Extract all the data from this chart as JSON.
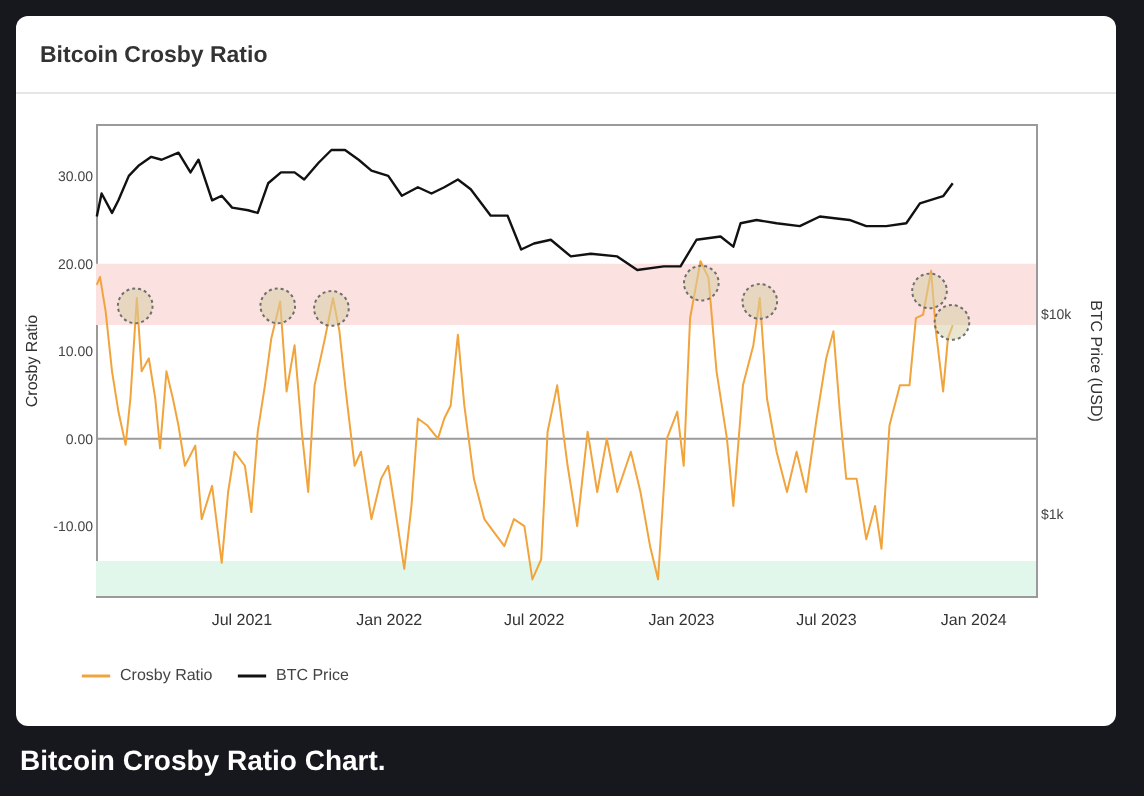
{
  "chart_data": {
    "type": "line",
    "title": "Bitcoin Crosby Ratio",
    "ylabel": "Crosby Ratio",
    "y2label": "BTC Price (USD)",
    "annotations": [
      "Bitcoin Crosby Ratio Chart."
    ],
    "xlim": [
      "2021-01-01",
      "2024-03-20"
    ],
    "xticks": [
      {
        "value": "2021-07-01",
        "label": "Jul 2021"
      },
      {
        "value": "2022-01-01",
        "label": "Jan 2022"
      },
      {
        "value": "2022-07-01",
        "label": "Jul 2022"
      },
      {
        "value": "2023-01-01",
        "label": "Jan 2023"
      },
      {
        "value": "2023-07-01",
        "label": "Jul 2023"
      },
      {
        "value": "2024-01-01",
        "label": "Jan 2024"
      }
    ],
    "ylim": [
      -18,
      36
    ],
    "yticks": [
      {
        "value": -10,
        "label": "-10.00"
      },
      {
        "value": 0,
        "label": "0.00"
      },
      {
        "value": 10,
        "label": "10.00"
      },
      {
        "value": 20,
        "label": "20.00"
      },
      {
        "value": 30,
        "label": "30.00"
      }
    ],
    "y2lim": [
      390,
      89000
    ],
    "y2ticks": [
      {
        "value": 1000,
        "label": "$1k"
      },
      {
        "value": 10000,
        "label": "$10k"
      }
    ],
    "log": "y2",
    "grid": false,
    "legend": "bottom left",
    "bands": [
      {
        "axis": "y",
        "from": 13,
        "to": 20,
        "color": "#fbe1df"
      },
      {
        "axis": "y",
        "from": -18,
        "to": -14,
        "color": "#e2f7ec"
      }
    ],
    "ref_lines": [
      {
        "axis": "y",
        "value": 0,
        "color": "#9a9a9a"
      }
    ],
    "series": [
      {
        "name": "Crosby Ratio",
        "type": "line",
        "color": "#f2a43c",
        "x": [
          "2021-01-02",
          "2021-01-06",
          "2021-01-13",
          "2021-01-21",
          "2021-01-29",
          "2021-02-07",
          "2021-02-13",
          "2021-02-21",
          "2021-02-27",
          "2021-03-08",
          "2021-03-16",
          "2021-03-22",
          "2021-03-30",
          "2021-04-07",
          "2021-04-14",
          "2021-04-22",
          "2021-05-05",
          "2021-05-13",
          "2021-05-26",
          "2021-06-07",
          "2021-06-15",
          "2021-06-23",
          "2021-07-06",
          "2021-07-14",
          "2021-07-22",
          "2021-07-31",
          "2021-08-08",
          "2021-08-19",
          "2021-08-27",
          "2021-09-06",
          "2021-09-15",
          "2021-09-23",
          "2021-10-01",
          "2021-10-14",
          "2021-10-24",
          "2021-11-01",
          "2021-11-09",
          "2021-11-20",
          "2021-11-28",
          "2021-12-11",
          "2021-12-23",
          "2022-01-01",
          "2022-01-09",
          "2022-01-21",
          "2022-01-30",
          "2022-02-07",
          "2022-02-19",
          "2022-03-04",
          "2022-03-12",
          "2022-03-20",
          "2022-03-29",
          "2022-04-06",
          "2022-04-18",
          "2022-05-01",
          "2022-05-13",
          "2022-05-26",
          "2022-06-07",
          "2022-06-20",
          "2022-06-30",
          "2022-07-11",
          "2022-07-19",
          "2022-07-31",
          "2022-08-13",
          "2022-08-25",
          "2022-09-07",
          "2022-09-19",
          "2022-10-01",
          "2022-10-14",
          "2022-10-31",
          "2022-11-12",
          "2022-11-24",
          "2022-12-04",
          "2022-12-15",
          "2022-12-28",
          "2023-01-05",
          "2023-01-13",
          "2023-01-26",
          "2023-02-05",
          "2023-02-15",
          "2023-02-28",
          "2023-03-08",
          "2023-03-20",
          "2023-04-02",
          "2023-04-10",
          "2023-04-19",
          "2023-05-01",
          "2023-05-14",
          "2023-05-26",
          "2023-06-07",
          "2023-06-20",
          "2023-07-02",
          "2023-07-11",
          "2023-07-19",
          "2023-07-27",
          "2023-08-09",
          "2023-08-21",
          "2023-09-01",
          "2023-09-09",
          "2023-09-19",
          "2023-10-02",
          "2023-10-14",
          "2023-10-22",
          "2023-10-31",
          "2023-11-10",
          "2023-11-16",
          "2023-11-25",
          "2023-12-01",
          "2023-12-07"
        ],
        "values": [
          17.6,
          18.5,
          14.6,
          7.7,
          3.1,
          -0.7,
          4.6,
          16.1,
          7.7,
          9.2,
          4.6,
          -1.1,
          7.7,
          4.6,
          1.5,
          -3.1,
          -0.8,
          -9.2,
          -5.4,
          -14.2,
          -6.1,
          -1.5,
          -3.1,
          -8.4,
          0.8,
          6.1,
          11.5,
          15.7,
          5.4,
          10.7,
          0.8,
          -6.1,
          6.1,
          11.5,
          16.1,
          12.3,
          5.4,
          -3.1,
          -1.5,
          -9.2,
          -4.6,
          -3.1,
          -7.7,
          -14.9,
          -7.7,
          2.3,
          1.5,
          0,
          2.3,
          3.8,
          11.9,
          3.8,
          -4.6,
          -9.2,
          -10.7,
          -12.3,
          -9.2,
          -10,
          -16.1,
          -13.8,
          0.8,
          6.1,
          -3.1,
          -10,
          0.8,
          -6.1,
          0,
          -6.1,
          -1.5,
          -6.1,
          -12.3,
          -16.1,
          0,
          3.1,
          -3.1,
          13.8,
          20.3,
          18.4,
          7.7,
          0,
          -7.7,
          6.1,
          10.7,
          16.1,
          4.6,
          -1.5,
          -6.1,
          -1.5,
          -6.1,
          2.3,
          9.2,
          12.3,
          3.1,
          -4.6,
          -4.6,
          -11.5,
          -7.7,
          -12.6,
          1.5,
          6.1,
          6.1,
          13.8,
          14.2,
          19.2,
          12.3,
          5.4,
          11.5,
          13.0
        ]
      },
      {
        "name": "BTC Price",
        "type": "line",
        "axis": "y2",
        "color": "#111111",
        "x": [
          "2021-01-02",
          "2021-01-08",
          "2021-01-21",
          "2021-01-29",
          "2021-02-11",
          "2021-02-23",
          "2021-03-11",
          "2021-03-24",
          "2021-04-14",
          "2021-04-29",
          "2021-05-09",
          "2021-05-26",
          "2021-06-07",
          "2021-06-20",
          "2021-07-10",
          "2021-07-22",
          "2021-08-04",
          "2021-08-20",
          "2021-09-06",
          "2021-09-18",
          "2021-10-06",
          "2021-10-22",
          "2021-11-08",
          "2021-11-25",
          "2021-12-11",
          "2022-01-01",
          "2022-01-18",
          "2022-02-07",
          "2022-02-24",
          "2022-03-12",
          "2022-03-29",
          "2022-04-14",
          "2022-05-09",
          "2022-05-30",
          "2022-06-16",
          "2022-07-02",
          "2022-07-23",
          "2022-08-17",
          "2022-09-11",
          "2022-10-14",
          "2022-11-08",
          "2022-12-11",
          "2023-01-01",
          "2023-01-21",
          "2023-02-20",
          "2023-03-08",
          "2023-03-17",
          "2023-04-06",
          "2023-05-01",
          "2023-05-30",
          "2023-06-24",
          "2023-07-31",
          "2023-08-21",
          "2023-09-15",
          "2023-10-10",
          "2023-10-27",
          "2023-11-25",
          "2023-12-07"
        ],
        "values": [
          30700,
          40000,
          32000,
          37000,
          49000,
          55000,
          61000,
          59000,
          64000,
          51000,
          59000,
          37000,
          39000,
          34000,
          33000,
          32000,
          45000,
          51000,
          51000,
          47000,
          57000,
          66000,
          66000,
          59000,
          52000,
          49000,
          39000,
          43000,
          40000,
          43000,
          47000,
          42000,
          31000,
          31000,
          21000,
          22500,
          23500,
          19400,
          20000,
          19400,
          16600,
          17300,
          17300,
          23500,
          24400,
          21700,
          28400,
          29500,
          28400,
          27500,
          30700,
          29500,
          27500,
          27500,
          28400,
          35700,
          38800,
          45000
        ]
      },
      {
        "type": "scatter",
        "marker": "circle",
        "color": "#d8cfa6",
        "x": [
          "2021-02-19",
          "2021-08-16",
          "2021-10-22",
          "2023-01-27",
          "2023-04-10",
          "2023-11-08",
          "2023-12-06"
        ],
        "values": [
          15.2,
          15.2,
          14.9,
          17.8,
          15.7,
          16.9,
          13.3
        ]
      }
    ]
  }
}
